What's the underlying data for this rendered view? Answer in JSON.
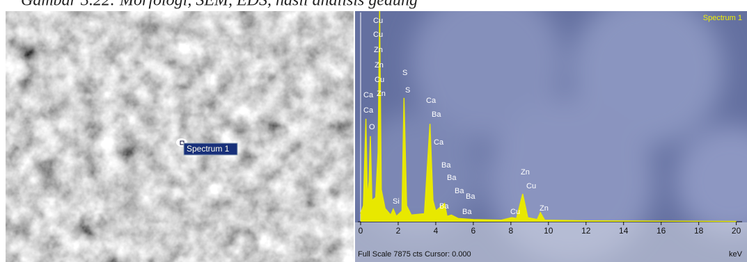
{
  "caption": "Gambar 3.22: Morfologi, SEM, EDS, hasil analisis gedung",
  "sem_image": {
    "label": "Spectrum 1"
  },
  "chart_data": {
    "type": "line",
    "title": "Spectrum 1",
    "color": "#e8e800",
    "x": [
      0,
      0.15,
      0.28,
      0.36,
      0.45,
      0.52,
      0.6,
      0.8,
      0.93,
      1.01,
      1.1,
      1.3,
      1.6,
      1.74,
      1.9,
      2.2,
      2.31,
      2.45,
      2.7,
      3.4,
      3.69,
      3.85,
      4.0,
      4.47,
      4.6,
      4.83,
      5.2,
      6,
      7.5,
      8.05,
      8.3,
      8.63,
      8.9,
      9.4,
      9.57,
      9.8,
      12,
      20
    ],
    "values": [
      300,
      600,
      3850,
      900,
      1500,
      3200,
      800,
      900,
      2600,
      7875,
      1200,
      500,
      250,
      470,
      200,
      400,
      4630,
      600,
      250,
      300,
      3660,
      800,
      400,
      680,
      200,
      250,
      120,
      80,
      60,
      150,
      120,
      1040,
      150,
      80,
      340,
      60,
      30,
      10
    ],
    "xlim": [
      0,
      20.2
    ],
    "xticks": [
      0,
      2,
      4,
      6,
      8,
      10,
      12,
      14,
      16,
      18,
      20
    ],
    "ylim": [
      0,
      7875
    ],
    "xlabel": "keV",
    "footer": "Full Scale 7875 cts Cursor: 0.000",
    "annotations": [
      "Cu",
      "Cu",
      "Zn",
      "Zn",
      "Cu",
      "S",
      "Ca",
      "Zn",
      "S",
      "Ca",
      "Ca",
      "Ba",
      "O",
      "Ca",
      "Ba",
      "Ba",
      "Ba",
      "Ba",
      "Si",
      "Ba",
      "Zn",
      "Cu",
      "Ba",
      "Cu",
      "Zn"
    ]
  }
}
